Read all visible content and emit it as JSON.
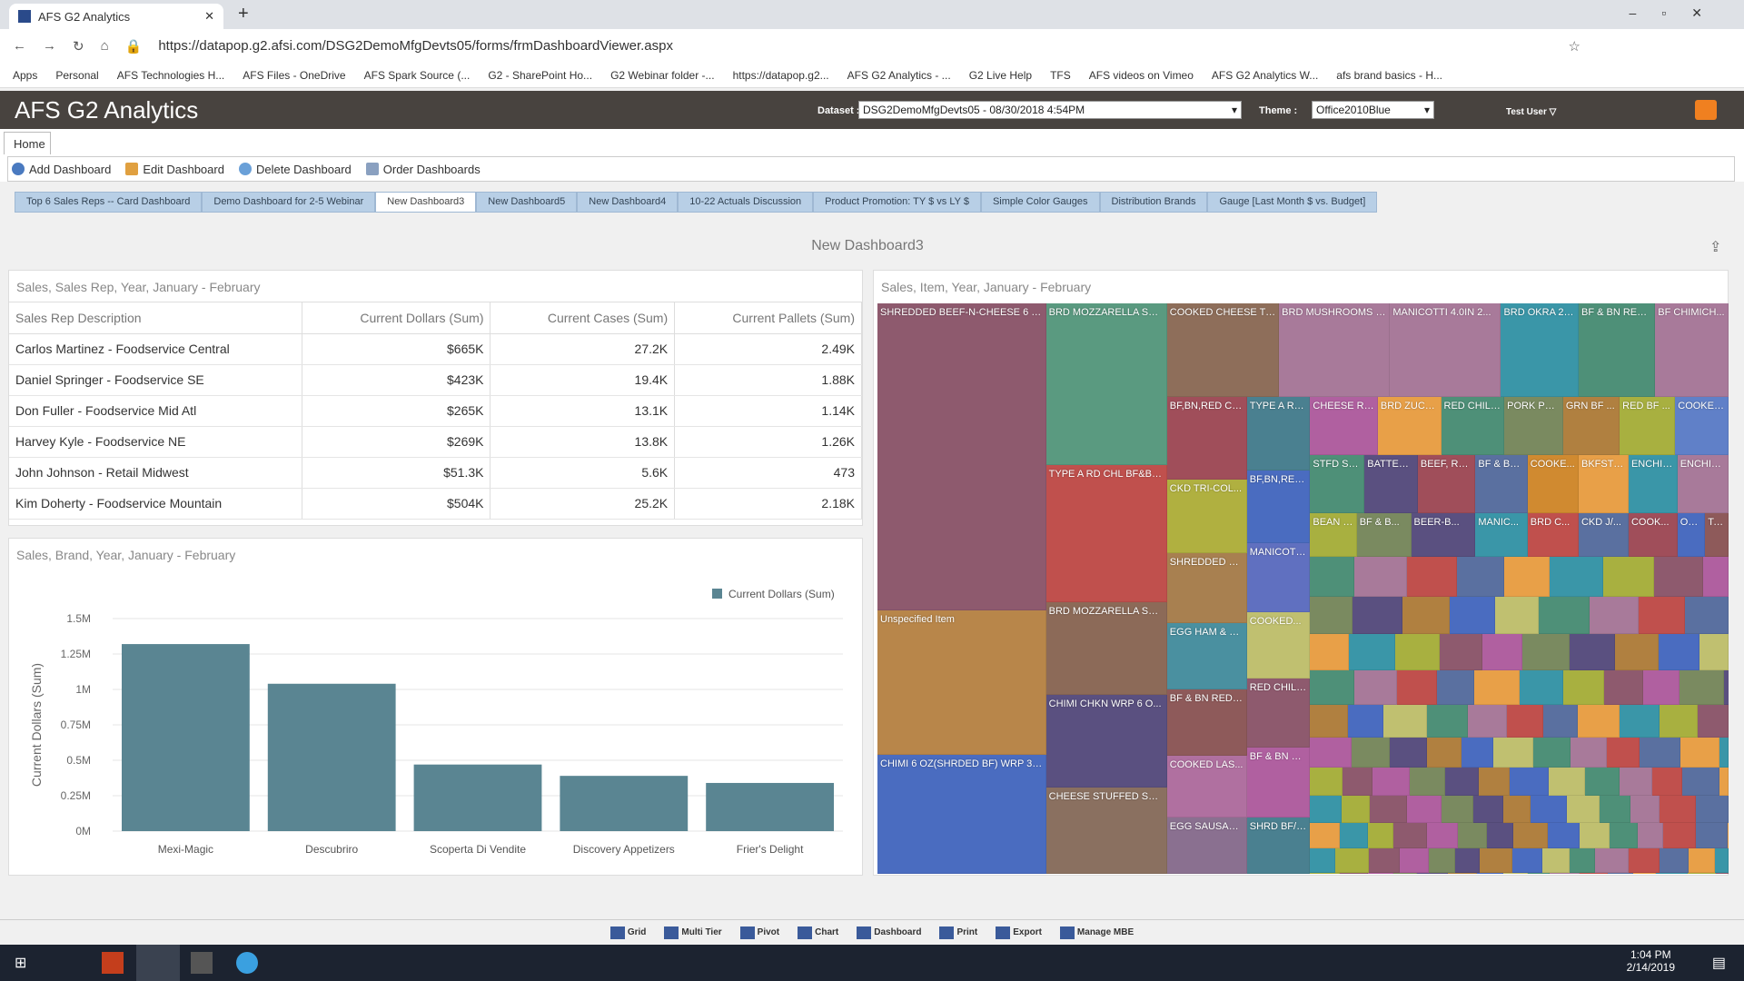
{
  "browser": {
    "tab_title": "AFS G2 Analytics",
    "url": "https://datapop.g2.afsi.com/DSG2DemoMfgDevts05/forms/frmDashboardViewer.aspx",
    "bookmarks": [
      "Apps",
      "Personal",
      "AFS Technologies H...",
      "AFS Files - OneDrive",
      "AFS Spark Source (...",
      "G2 - SharePoint Ho...",
      "G2 Webinar folder -...",
      "https://datapop.g2...",
      "AFS G2 Analytics - ...",
      "G2 Live Help",
      "TFS",
      "AFS videos on Vimeo",
      "AFS G2 Analytics W...",
      "afs brand basics - H..."
    ]
  },
  "app": {
    "title": "AFS G2 Analytics",
    "dataset_label": "Dataset :",
    "dataset_value": "DSG2DemoMfgDevts05 - 08/30/2018 4:54PM",
    "theme_label": "Theme :",
    "theme_value": "Office2010Blue",
    "user": "Test User ▽"
  },
  "ribbon": {
    "home_tab": "Home",
    "tools": [
      "Add Dashboard",
      "Edit Dashboard",
      "Delete Dashboard",
      "Order Dashboards"
    ]
  },
  "dashboard_tabs": [
    "Top 6 Sales Reps -- Card Dashboard",
    "Demo Dashboard for 2-5 Webinar",
    "New Dashboard3",
    "New Dashboard5",
    "New Dashboard4",
    "10-22 Actuals Discussion",
    "Product Promotion: TY $ vs LY $",
    "Simple Color Gauges",
    "Distribution Brands",
    "Gauge [Last Month $ vs. Budget]"
  ],
  "dashboard_title": "New Dashboard3",
  "table_panel": {
    "title": "Sales, Sales Rep, Year, January - February",
    "columns": [
      "Sales Rep Description",
      "Current Dollars (Sum)",
      "Current Cases (Sum)",
      "Current Pallets (Sum)"
    ],
    "rows": [
      [
        "Carlos Martinez - Foodservice Central",
        "$665K",
        "27.2K",
        "2.49K"
      ],
      [
        "Daniel Springer - Foodservice SE",
        "$423K",
        "19.4K",
        "1.88K"
      ],
      [
        "Don Fuller - Foodservice Mid Atl",
        "$265K",
        "13.1K",
        "1.14K"
      ],
      [
        "Harvey Kyle - Foodservice NE",
        "$269K",
        "13.8K",
        "1.26K"
      ],
      [
        "John Johnson - Retail Midwest",
        "$51.3K",
        "5.6K",
        "473"
      ],
      [
        "Kim Doherty - Foodservice Mountain",
        "$504K",
        "25.2K",
        "2.18K"
      ]
    ]
  },
  "chart_data": {
    "type": "bar",
    "title": "Sales, Brand, Year, January - February",
    "categories": [
      "Mexi-Magic",
      "Descubriro",
      "Scoperta Di Vendite",
      "Discovery Appetizers",
      "Frier's Delight"
    ],
    "series": [
      {
        "name": "Current Dollars (Sum)",
        "values": [
          1320000,
          1040000,
          470000,
          390000,
          340000
        ],
        "color": "#5a8592"
      }
    ],
    "xlabel": "",
    "ylabel": "Current Dollars (Sum)",
    "ylim": [
      0,
      1500000
    ],
    "yticks": [
      "0M",
      "0.25M",
      "0.5M",
      "0.75M",
      "1M",
      "1.25M",
      "1.5M"
    ],
    "legend": "top-right",
    "grid": true
  },
  "treemap": {
    "title": "Sales, Item, Year, January - February",
    "tiles": [
      {
        "label": "SHREDDED BEEF-N-CHEESE 6 OZ...",
        "color": "#8e5a6e"
      },
      {
        "label": "Unspecified Item",
        "color": "#b8864a"
      },
      {
        "label": "CHIMI 6 OZ(SHRDED BF) WRP 3/1...",
        "color": "#4a6cc0"
      },
      {
        "label": "BRD MOZZARELLA STI...",
        "color": "#5a9a80"
      },
      {
        "label": "TYPE A RD CHL BF&BN...",
        "color": "#c0504d"
      },
      {
        "label": "BRD MOZZARELLA STI...",
        "color": "#8c6a58"
      },
      {
        "label": "CHIMI CHKN WRP 6 O...",
        "color": "#5a5080"
      },
      {
        "label": "CHEESE STUFFED SHEL...",
        "color": "#8a7060"
      },
      {
        "label": "COOKED CHEESE TO...",
        "color": "#8e6e5a"
      },
      {
        "label": "BRD MUSHROOMS 6...",
        "color": "#a87a9a"
      },
      {
        "label": "MANICOTTI 4.0IN 2...",
        "color": "#a87a9a"
      },
      {
        "label": "BRD OKRA 20...",
        "color": "#3a96a8"
      },
      {
        "label": "BF & BN RED...",
        "color": "#4e9078"
      },
      {
        "label": "BF CHIMICH...",
        "color": "#a87a9a"
      },
      {
        "label": "BF,BN,RED CH...",
        "color": "#a04e5a"
      },
      {
        "label": "TYPE A RD...",
        "color": "#4a8090"
      },
      {
        "label": "CHEESE RA...",
        "color": "#b060a0"
      },
      {
        "label": "BRD ZUCC...",
        "color": "#e8a048"
      },
      {
        "label": "RED CHILI ...",
        "color": "#4e9078"
      },
      {
        "label": "PORK PO...",
        "color": "#7a8a60"
      },
      {
        "label": "GRN BF ...",
        "color": "#b08040"
      },
      {
        "label": "RED BF ...",
        "color": "#a8b040"
      },
      {
        "label": "COOKED...",
        "color": "#6080c8"
      },
      {
        "label": "CKD TRI-COL...",
        "color": "#b0b040"
      },
      {
        "label": "BF,BN,RED ...",
        "color": "#4a6cc0"
      },
      {
        "label": "SHREDDED BE...",
        "color": "#a88050"
      },
      {
        "label": "MANICOTT...",
        "color": "#6070c0"
      },
      {
        "label": "EGG HAM & C...",
        "color": "#4a90a0"
      },
      {
        "label": "COOKED...",
        "color": "#c0c070"
      },
      {
        "label": "BF & BN RED ...",
        "color": "#8e5a5a"
      },
      {
        "label": "RED CHILI ...",
        "color": "#8e5a6e"
      },
      {
        "label": "COOKED LAS...",
        "color": "#b070a0"
      },
      {
        "label": "BF & BN R...",
        "color": "#b060a0"
      },
      {
        "label": "EGG SAUSAGE...",
        "color": "#8a7090"
      },
      {
        "label": "SHRD BF/C...",
        "color": "#4a8090"
      },
      {
        "label": "STFD SH...",
        "color": "#4e9078"
      },
      {
        "label": "BATTERE...",
        "color": "#5a5080"
      },
      {
        "label": "BEEF, RD...",
        "color": "#a04e5a"
      },
      {
        "label": "BF & BN...",
        "color": "#5a70a0"
      },
      {
        "label": "COOKE...",
        "color": "#d08a30"
      },
      {
        "label": "BKFST B...",
        "color": "#e8a048"
      },
      {
        "label": "ENCHIL...",
        "color": "#3a96a8"
      },
      {
        "label": "ENCHIL...",
        "color": "#a87a9a"
      },
      {
        "label": "BEAN &...",
        "color": "#a8b040"
      },
      {
        "label": "BF & B...",
        "color": "#7a8a60"
      },
      {
        "label": "BEER-B...",
        "color": "#5a5080"
      },
      {
        "label": "MANIC...",
        "color": "#3a96a8"
      },
      {
        "label": "BRD C...",
        "color": "#c0504d"
      },
      {
        "label": "CKD J/...",
        "color": "#5a70a0"
      },
      {
        "label": "COOK...",
        "color": "#a04e5a"
      },
      {
        "label": "ORIG...",
        "color": "#4a6cc0"
      },
      {
        "label": "TAQUI...",
        "color": "#8e5a5a"
      }
    ],
    "small_colors": [
      "#4e9078",
      "#a87a9a",
      "#c0504d",
      "#5a70a0",
      "#e8a048",
      "#3a96a8",
      "#a8b040",
      "#8e5a6e",
      "#b060a0",
      "#7a8a60",
      "#5a5080",
      "#b08040",
      "#4a6cc0",
      "#c0c070"
    ]
  },
  "bottom_toolbar": [
    "Grid",
    "Multi Tier",
    "Pivot",
    "Chart",
    "Dashboard",
    "Print",
    "Export",
    "Manage MBE"
  ],
  "taskbar": {
    "time": "1:04 PM",
    "date": "2/14/2019"
  }
}
